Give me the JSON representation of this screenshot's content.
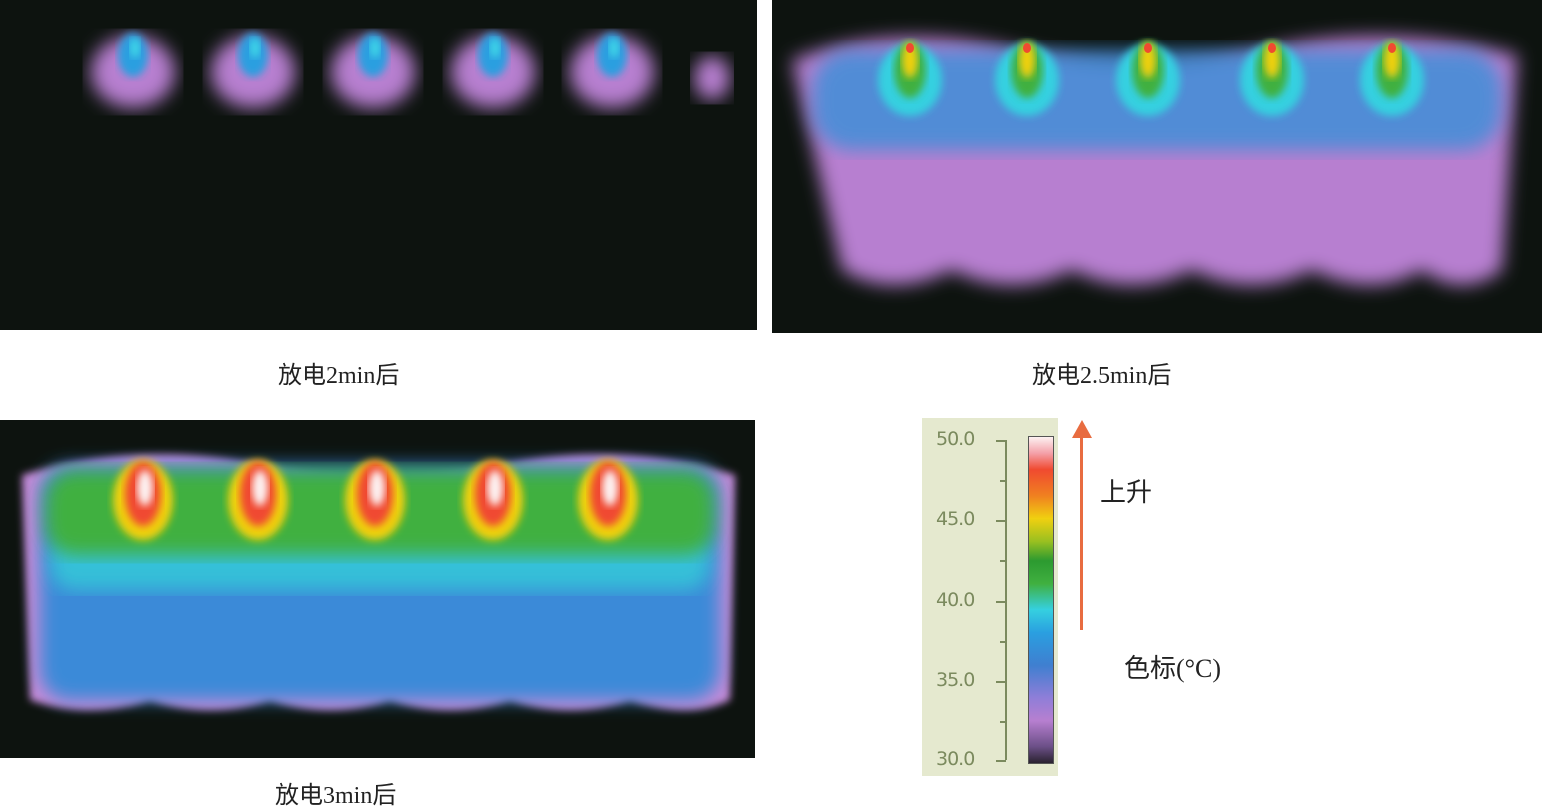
{
  "panels": [
    {
      "caption": "放电2min后"
    },
    {
      "caption": "放电2.5min后"
    },
    {
      "caption": "放电3min后"
    }
  ],
  "colorbar": {
    "ticks": [
      "50.0",
      "45.0",
      "40.0",
      "35.0",
      "30.0"
    ],
    "range": [
      30.0,
      50.0
    ],
    "unit_label": "色标(°C)",
    "arrow_label": "上升",
    "arrow_color": "#e86c40"
  }
}
